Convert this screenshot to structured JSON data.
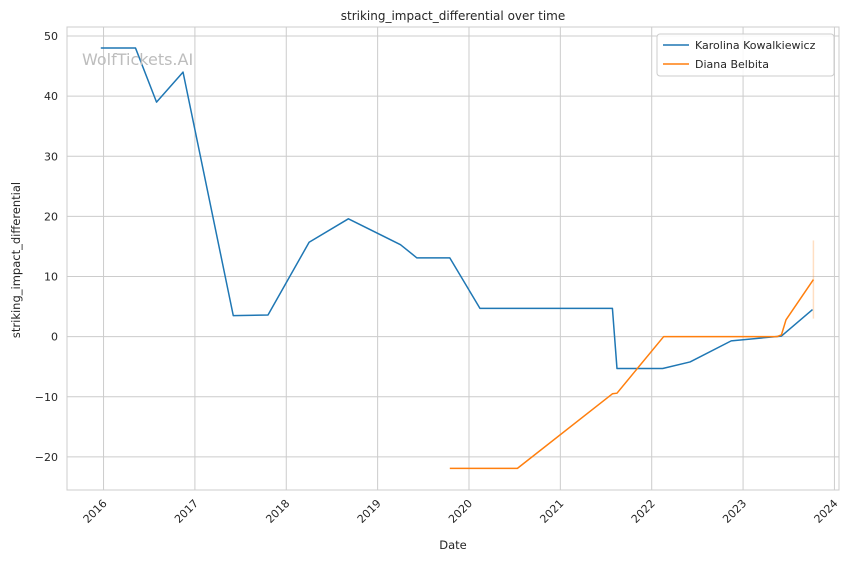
{
  "chart_data": {
    "type": "line",
    "title": "striking_impact_differential over time",
    "xlabel": "Date",
    "ylabel": "striking_impact_differential",
    "watermark": "WolfTickets.AI",
    "x_tick_labels": [
      "2016",
      "2017",
      "2018",
      "2019",
      "2020",
      "2021",
      "2022",
      "2023",
      "2024"
    ],
    "y_tick_labels": [
      "−20",
      "−10",
      "0",
      "10",
      "20",
      "30",
      "40",
      "50"
    ],
    "xlim": [
      2015.6,
      2024.05
    ],
    "ylim": [
      -25.5,
      51.5
    ],
    "grid": true,
    "legend_position": "top-right",
    "series": [
      {
        "name": "Karolina Kowalkiewicz",
        "color": "#1f77b4",
        "points": [
          [
            2015.97,
            48
          ],
          [
            2016.35,
            48
          ],
          [
            2016.58,
            39
          ],
          [
            2016.87,
            44
          ],
          [
            2017.42,
            3.5
          ],
          [
            2017.8,
            3.6
          ],
          [
            2018.25,
            15.7
          ],
          [
            2018.68,
            19.6
          ],
          [
            2019.25,
            15.3
          ],
          [
            2019.43,
            13.1
          ],
          [
            2019.79,
            13.1
          ],
          [
            2020.12,
            4.7
          ],
          [
            2021.57,
            4.7
          ],
          [
            2021.62,
            -5.3
          ],
          [
            2022.12,
            -5.3
          ],
          [
            2022.42,
            -4.2
          ],
          [
            2022.87,
            -0.7
          ],
          [
            2023.42,
            0.1
          ],
          [
            2023.76,
            4.5
          ]
        ]
      },
      {
        "name": "Diana Belbita",
        "color": "#ff7f0e",
        "points": [
          [
            2019.79,
            -21.9
          ],
          [
            2020.53,
            -21.9
          ],
          [
            2021.57,
            -9.5
          ],
          [
            2021.62,
            -9.4
          ],
          [
            2022.13,
            0
          ],
          [
            2023.37,
            0
          ],
          [
            2023.42,
            0.3
          ],
          [
            2023.47,
            2.8
          ],
          [
            2023.77,
            9.5
          ]
        ],
        "error_band": {
          "x": 2023.77,
          "low": 3,
          "high": 16
        }
      }
    ]
  }
}
